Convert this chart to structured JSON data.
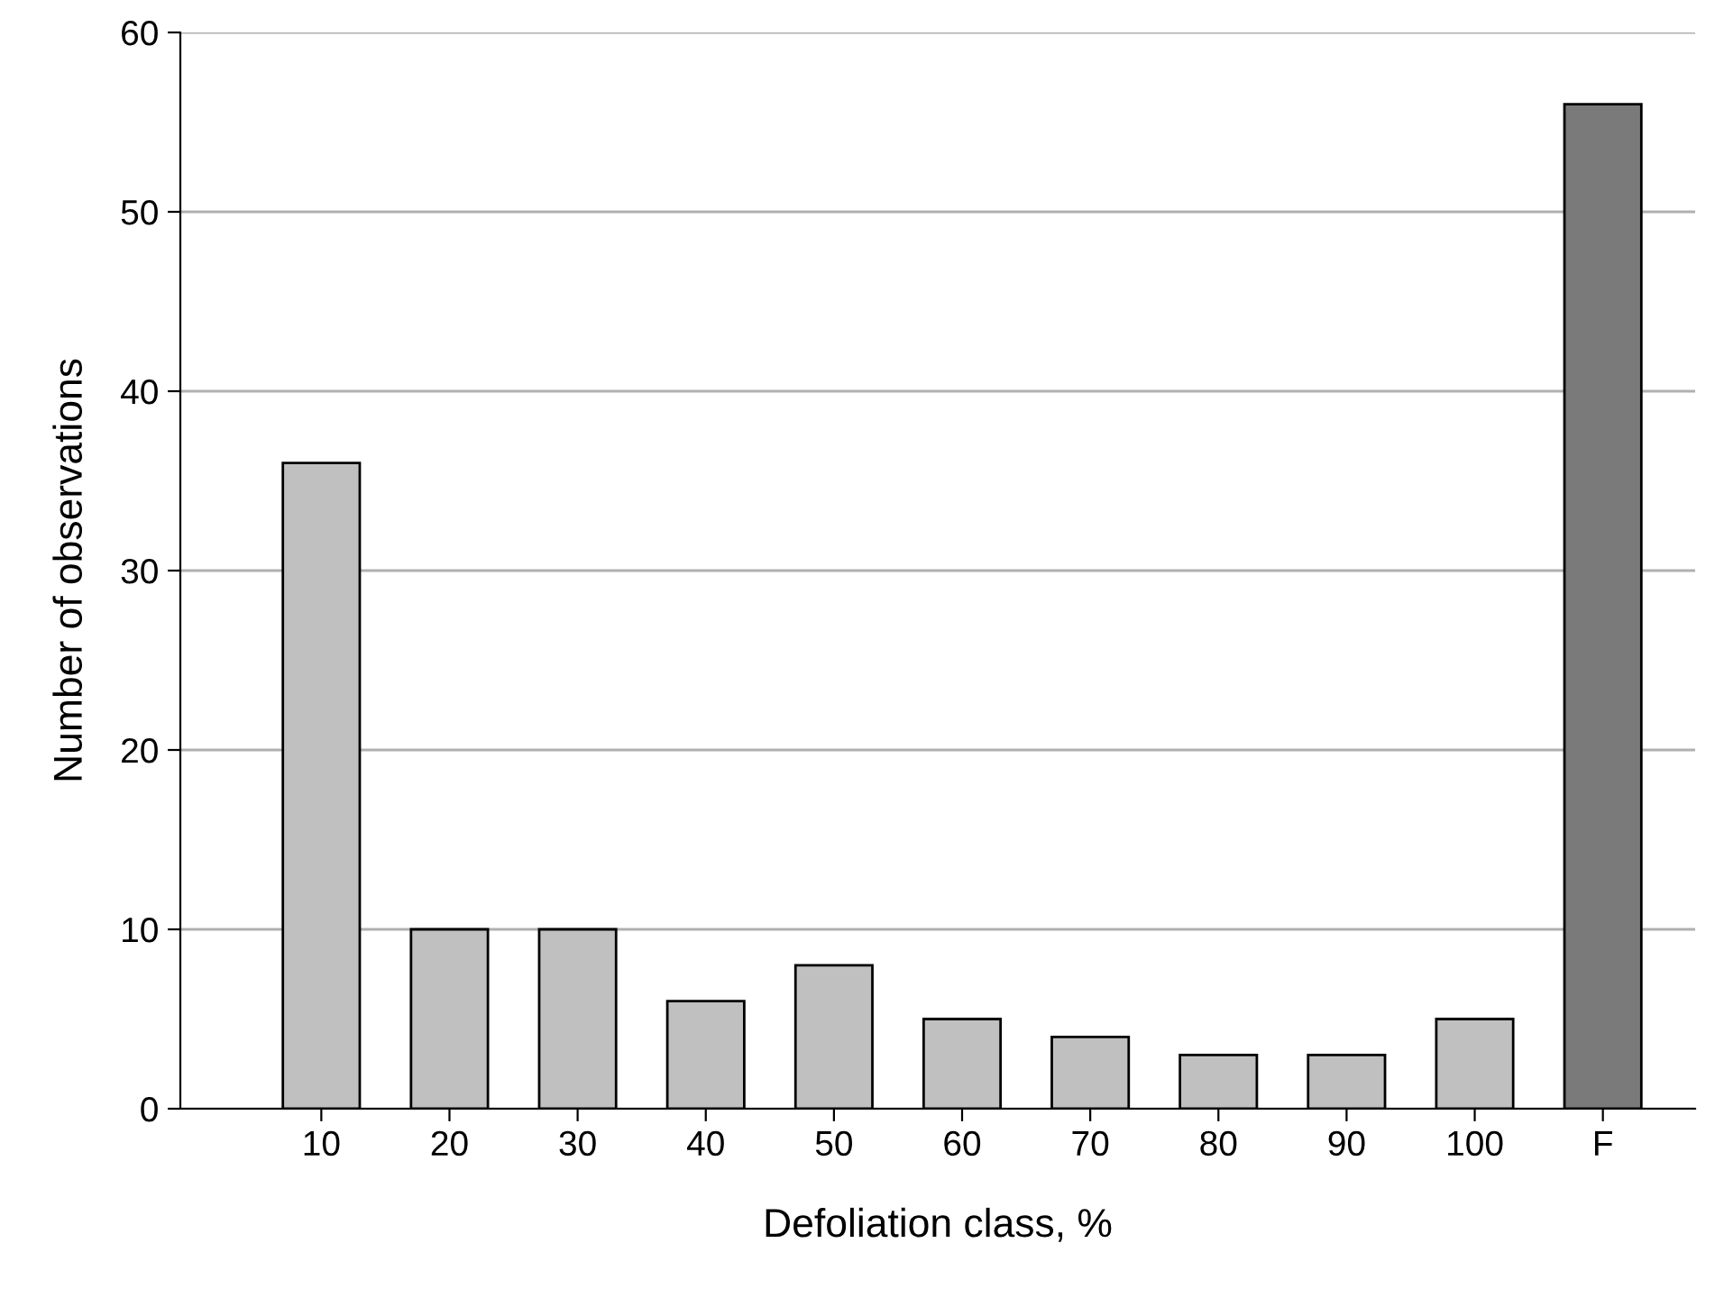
{
  "chart_data": {
    "type": "bar",
    "xlabel": "Defoliation class, %",
    "ylabel": "Number of observations",
    "categories": [
      "10",
      "20",
      "30",
      "40",
      "50",
      "60",
      "70",
      "80",
      "90",
      "100",
      "F"
    ],
    "values": [
      36,
      10,
      10,
      6,
      8,
      5,
      4,
      3,
      3,
      5,
      56
    ],
    "colors": [
      "#c0c0c0",
      "#c0c0c0",
      "#c0c0c0",
      "#c0c0c0",
      "#c0c0c0",
      "#c0c0c0",
      "#c0c0c0",
      "#c0c0c0",
      "#c0c0c0",
      "#c0c0c0",
      "#7a7a7a"
    ],
    "ylim": [
      0,
      60
    ],
    "yticks": [
      0,
      10,
      20,
      30,
      40,
      50,
      60
    ],
    "grid": "y"
  }
}
